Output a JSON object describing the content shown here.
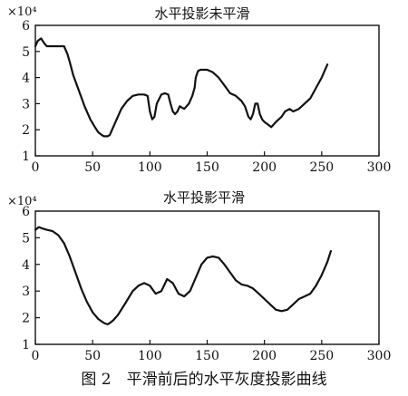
{
  "figure": {
    "caption": "图 2　平滑前后的水平灰度投影曲线"
  },
  "chart_data": [
    {
      "type": "line",
      "title": "水平投影未平滑",
      "xlabel": "",
      "ylabel": "",
      "y_multiplier": "×10⁴",
      "xlim": [
        0,
        300
      ],
      "ylim": [
        1,
        6
      ],
      "xticks": [
        "0",
        "50",
        "100",
        "150",
        "200",
        "250",
        "300"
      ],
      "yticks": [
        "1",
        "2",
        "3",
        "4",
        "5",
        "6"
      ],
      "grid": false,
      "series": [
        {
          "x": [
            0,
            2,
            5,
            8,
            10,
            12,
            15,
            20,
            25,
            28,
            30,
            33,
            38,
            43,
            48,
            52,
            55,
            58,
            60,
            63,
            65,
            67,
            70,
            75,
            80,
            85,
            90,
            95,
            98,
            100,
            102,
            104,
            106,
            110,
            113,
            116,
            118,
            120,
            122,
            124,
            126,
            130,
            134,
            137,
            139,
            140,
            142,
            144,
            147,
            150,
            155,
            160,
            165,
            170,
            175,
            180,
            183,
            186,
            188,
            190,
            192,
            194,
            196,
            198,
            200,
            203,
            206,
            210,
            215,
            218,
            222,
            225,
            230,
            235,
            240,
            245,
            250,
            255
          ],
          "y": [
            5.2,
            5.4,
            5.5,
            5.3,
            5.2,
            5.2,
            5.2,
            5.2,
            5.2,
            4.9,
            4.6,
            4.1,
            3.5,
            2.9,
            2.4,
            2.1,
            1.9,
            1.8,
            1.75,
            1.75,
            1.8,
            2.0,
            2.3,
            2.8,
            3.1,
            3.3,
            3.35,
            3.35,
            3.3,
            2.7,
            2.4,
            2.5,
            3.0,
            3.35,
            3.4,
            3.35,
            3.0,
            2.7,
            2.6,
            2.7,
            2.9,
            2.8,
            3.0,
            3.3,
            3.6,
            4.0,
            4.25,
            4.3,
            4.3,
            4.3,
            4.2,
            4.0,
            3.7,
            3.4,
            3.3,
            3.1,
            2.9,
            2.5,
            2.4,
            2.6,
            3.0,
            3.0,
            2.6,
            2.4,
            2.3,
            2.2,
            2.1,
            2.3,
            2.5,
            2.7,
            2.8,
            2.7,
            2.8,
            3.0,
            3.2,
            3.6,
            4.0,
            4.5
          ]
        }
      ]
    },
    {
      "type": "line",
      "title": "水平投影平滑",
      "xlabel": "",
      "ylabel": "",
      "y_multiplier": "×10⁴",
      "xlim": [
        0,
        300
      ],
      "ylim": [
        1,
        6
      ],
      "xticks": [
        "0",
        "50",
        "100",
        "150",
        "200",
        "250",
        "300"
      ],
      "yticks": [
        "1",
        "2",
        "3",
        "4",
        "5",
        "6"
      ],
      "grid": false,
      "series": [
        {
          "x": [
            0,
            3,
            6,
            10,
            15,
            20,
            25,
            30,
            35,
            40,
            45,
            50,
            55,
            60,
            63,
            65,
            68,
            72,
            78,
            85,
            90,
            95,
            100,
            105,
            110,
            115,
            120,
            125,
            130,
            135,
            140,
            145,
            150,
            155,
            160,
            165,
            170,
            175,
            180,
            185,
            190,
            195,
            200,
            205,
            210,
            215,
            220,
            225,
            230,
            235,
            240,
            245,
            250,
            255,
            258
          ],
          "y": [
            5.3,
            5.4,
            5.35,
            5.3,
            5.25,
            5.1,
            4.8,
            4.3,
            3.7,
            3.1,
            2.6,
            2.2,
            1.95,
            1.8,
            1.75,
            1.8,
            1.9,
            2.1,
            2.5,
            3.0,
            3.2,
            3.3,
            3.2,
            2.9,
            3.0,
            3.45,
            3.3,
            2.9,
            2.8,
            3.0,
            3.5,
            4.0,
            4.25,
            4.3,
            4.25,
            4.0,
            3.7,
            3.4,
            3.25,
            3.2,
            3.1,
            2.9,
            2.7,
            2.5,
            2.3,
            2.25,
            2.3,
            2.5,
            2.7,
            2.8,
            2.9,
            3.2,
            3.6,
            4.1,
            4.5
          ]
        }
      ]
    }
  ]
}
